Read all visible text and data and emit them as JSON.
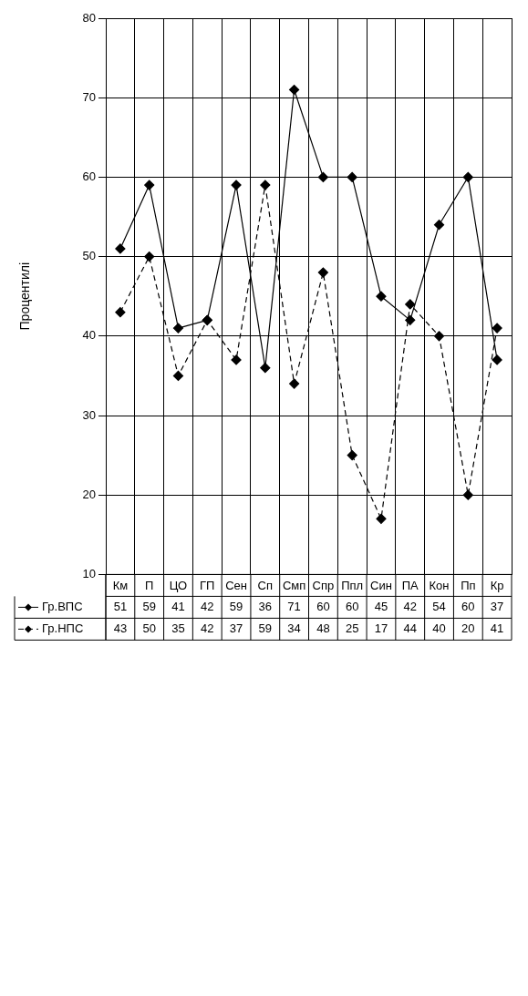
{
  "chart_data": {
    "type": "line",
    "ylabel": "Процентилі",
    "categories": [
      "Км",
      "П",
      "ЦО",
      "ГП",
      "Сен",
      "Сп",
      "Смп",
      "Спр",
      "Ппл",
      "Син",
      "ПА",
      "Кон",
      "Пп",
      "Кр"
    ],
    "series": [
      {
        "name": "Гр.ВПС",
        "color": "#000000",
        "line_style": "solid",
        "values": [
          51,
          59,
          41,
          42,
          59,
          36,
          71,
          60,
          60,
          45,
          42,
          54,
          60,
          37
        ]
      },
      {
        "name": "Гр.НПС",
        "color": "#000000",
        "line_style": "dashed",
        "values": [
          43,
          50,
          35,
          42,
          37,
          59,
          34,
          48,
          25,
          17,
          44,
          40,
          20,
          41
        ]
      }
    ],
    "ylim": [
      10,
      80
    ],
    "yticks": [
      10,
      20,
      30,
      40,
      50,
      60,
      70,
      80
    ],
    "grid": true,
    "marker": "diamond",
    "legend": "bottom",
    "data_labels": true
  }
}
